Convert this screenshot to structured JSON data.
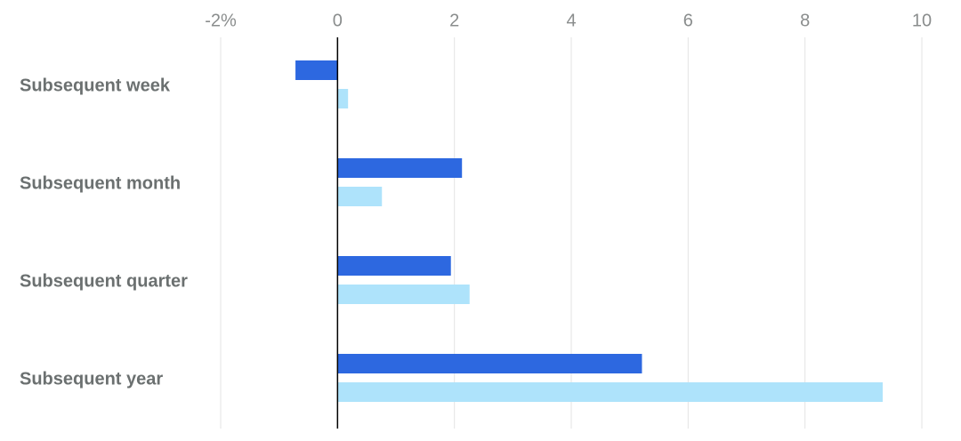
{
  "chart_data": {
    "type": "hbar",
    "categories": [
      "Subsequent week",
      "Subsequent month",
      "Subsequent quarter",
      "Subsequent year"
    ],
    "series": [
      {
        "color": "#2d68e0",
        "values": [
          -0.72,
          2.13,
          1.94,
          5.21
        ]
      },
      {
        "color": "#aee3fb",
        "values": [
          0.18,
          0.76,
          2.26,
          9.33
        ]
      }
    ],
    "xlim": [
      -2,
      10
    ],
    "xticks": [
      {
        "value": -2,
        "label": "-2%"
      },
      0,
      2,
      4,
      6,
      8,
      10
    ],
    "grid": true
  }
}
